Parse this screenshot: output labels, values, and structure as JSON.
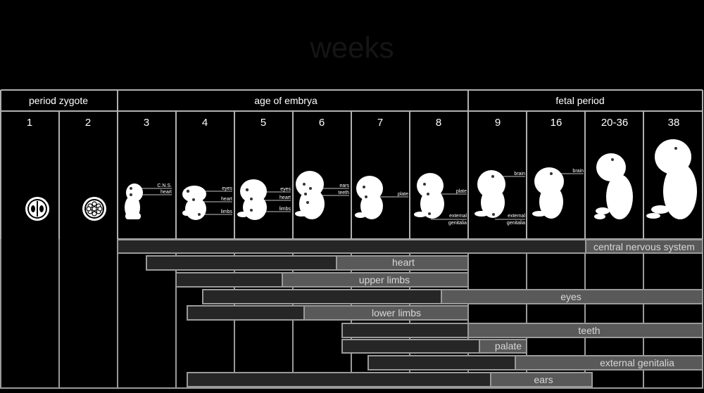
{
  "title": "weeks",
  "periods": [
    {
      "label": "period zygote"
    },
    {
      "label": "age of embrya"
    },
    {
      "label": "fetal period"
    }
  ],
  "weeks": [
    "1",
    "2",
    "3",
    "4",
    "5",
    "6",
    "7",
    "8",
    "9",
    "16",
    "20-36",
    "38"
  ],
  "annotations": [
    "C.N.S.",
    "heart",
    "eyes",
    "heart",
    "limbs",
    "eyes",
    "heart",
    "limbs",
    "ears",
    "teeth",
    "plate",
    "plate",
    "external",
    "genitalia",
    "brain",
    "external",
    "genitalia",
    "brain"
  ],
  "bars": [
    {
      "label": "central nervous system"
    },
    {
      "label": "heart"
    },
    {
      "label": "upper limbs"
    },
    {
      "label": "eyes"
    },
    {
      "label": "lower limbs"
    },
    {
      "label": "teeth"
    },
    {
      "label": "palate"
    },
    {
      "label": "external genitalia"
    },
    {
      "label": "ears"
    }
  ],
  "colors": {
    "background": "#000000",
    "grid": "#a9a9a9",
    "bar_dark": "#262626",
    "bar_light": "#595959",
    "embryo": "#ffffff"
  }
}
